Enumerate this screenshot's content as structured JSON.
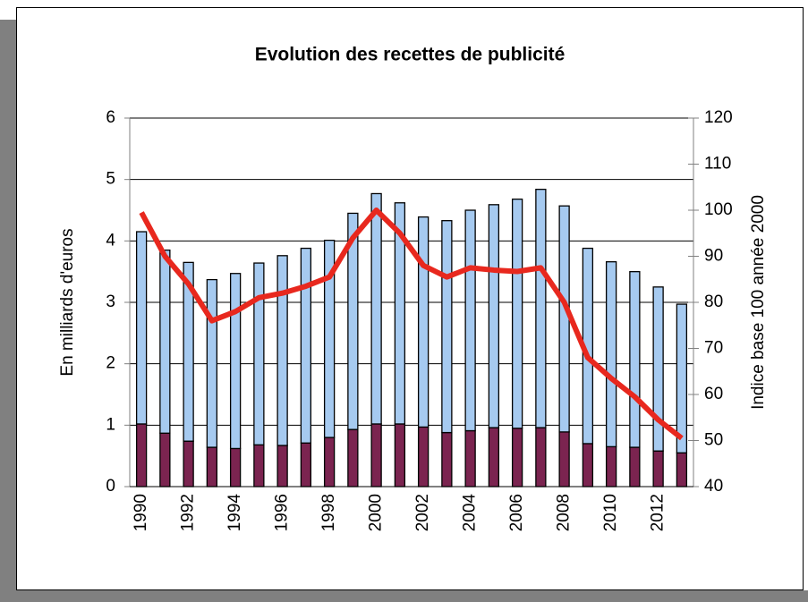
{
  "chart_data": {
    "type": "bar",
    "title": "Evolution des recettes de publicité",
    "y_label": "En milliards d'euros",
    "y2_label": "Indice base 100 année 2000",
    "categories": [
      "1990",
      null,
      "1992",
      null,
      "1994",
      null,
      "1996",
      null,
      "1998",
      null,
      "2000",
      null,
      "2002",
      null,
      "2004",
      null,
      "2006",
      null,
      "2008",
      null,
      "2010",
      null,
      "2012",
      null
    ],
    "stacked": true,
    "series": [
      {
        "color": "#7b2450",
        "values": [
          1.02,
          0.87,
          0.74,
          0.64,
          0.62,
          0.68,
          0.67,
          0.71,
          0.8,
          0.93,
          1.02,
          1.02,
          0.97,
          0.88,
          0.91,
          0.96,
          0.95,
          0.96,
          0.89,
          0.7,
          0.65,
          0.64,
          0.58,
          0.55
        ]
      },
      {
        "color": "#a6caf0",
        "values": [
          3.13,
          2.98,
          2.91,
          2.73,
          2.85,
          2.96,
          3.09,
          3.17,
          3.21,
          3.52,
          3.75,
          3.6,
          3.42,
          3.45,
          3.59,
          3.63,
          3.73,
          3.88,
          3.68,
          3.18,
          3.01,
          2.86,
          2.67,
          2.42
        ]
      },
      {
        "type": "line",
        "axis": "y2",
        "color": "#e8281e",
        "values": [
          99.5,
          90,
          84,
          76,
          78,
          81,
          82,
          83.5,
          85.5,
          94,
          100,
          95,
          88,
          85.5,
          87.5,
          87,
          86.7,
          87.5,
          80,
          68,
          63.5,
          59.5,
          54.5,
          50.5
        ]
      }
    ],
    "ylim": [
      0,
      6
    ],
    "yticks": [
      0,
      1,
      2,
      3,
      4,
      5,
      6
    ],
    "y2lim": [
      40,
      120
    ],
    "y2ticks": [
      40,
      50,
      60,
      70,
      80,
      90,
      100,
      110,
      120
    ],
    "grid": true
  }
}
